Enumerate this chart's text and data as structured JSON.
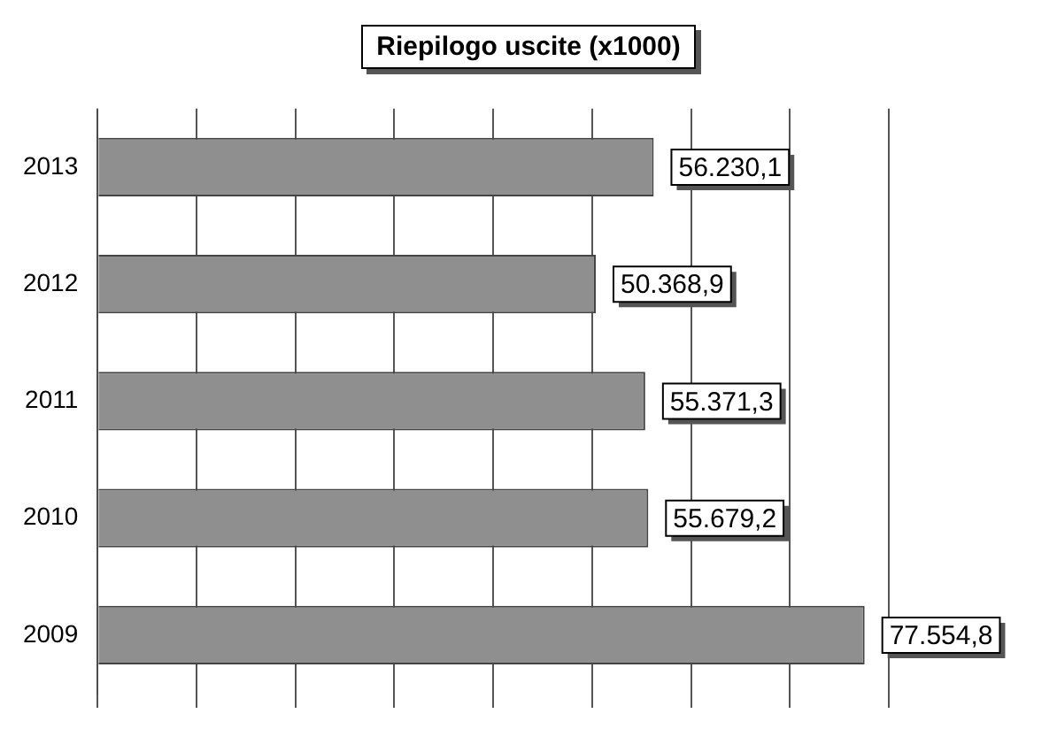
{
  "chart_data": {
    "type": "bar",
    "orientation": "horizontal",
    "title": "Riepilogo uscite (x1000)",
    "categories": [
      "2013",
      "2012",
      "2011",
      "2010",
      "2009"
    ],
    "values": [
      56230.1,
      50368.9,
      55371.3,
      55679.2,
      77554.8
    ],
    "value_labels": [
      "56.230,1",
      "50.368,9",
      "55.371,3",
      "55.679,2",
      "77.554,8"
    ],
    "color": "#8f8f8f",
    "grid": "x",
    "tick_labels": "y",
    "legend": false
  }
}
